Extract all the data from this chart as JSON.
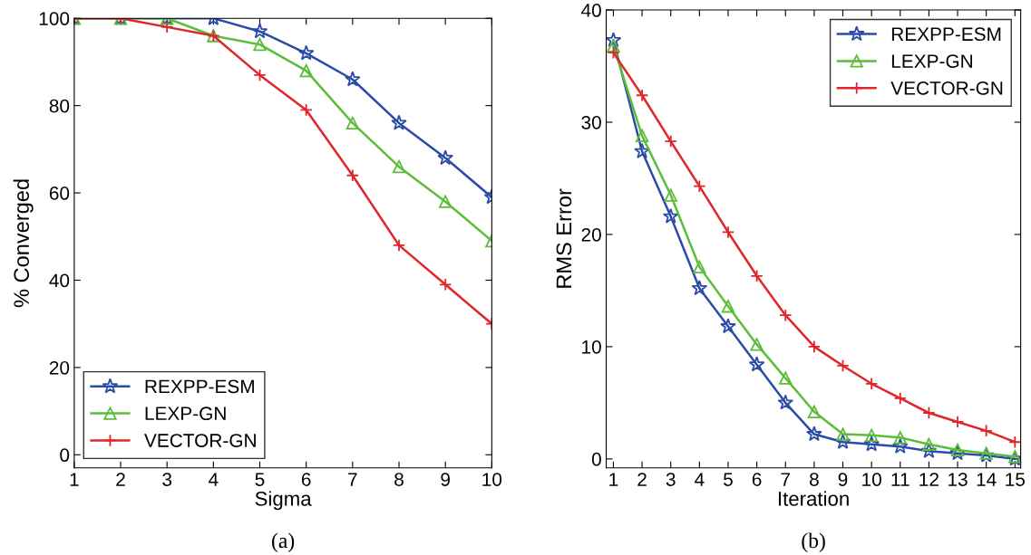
{
  "chart_data": [
    {
      "type": "line",
      "xlabel": "Sigma",
      "ylabel": "% Converged",
      "annotations": [
        "(a)"
      ],
      "x": [
        1,
        2,
        3,
        4,
        5,
        6,
        7,
        8,
        9,
        10
      ],
      "xlim": [
        1,
        10
      ],
      "xticks": [
        1,
        2,
        3,
        4,
        5,
        6,
        7,
        8,
        9,
        10
      ],
      "ylim": [
        -3,
        100
      ],
      "yticks": [
        0,
        20,
        40,
        60,
        80,
        100
      ],
      "legend": "bottom left",
      "grid": false,
      "series": [
        {
          "name": "REXPP-ESM",
          "color": "#2b4ba8",
          "marker": "star",
          "values": [
            100,
            100,
            100,
            100,
            97,
            92,
            86,
            76,
            68,
            59
          ]
        },
        {
          "name": "LEXP-GN",
          "color": "#5cbd3a",
          "marker": "triangle",
          "values": [
            100,
            100,
            100,
            96,
            94,
            88,
            76,
            66,
            58,
            49
          ]
        },
        {
          "name": "VECTOR-GN",
          "color": "#e0262a",
          "marker": "cross",
          "values": [
            100,
            100,
            98,
            96,
            87,
            79,
            64,
            48,
            39,
            30
          ]
        }
      ]
    },
    {
      "type": "line",
      "xlabel": "Iteration",
      "ylabel": "RMS Error",
      "annotations": [
        "(b)"
      ],
      "x": [
        1,
        2,
        3,
        4,
        5,
        6,
        7,
        8,
        9,
        10,
        11,
        12,
        13,
        14,
        15
      ],
      "xlim": [
        0.75,
        15.2
      ],
      "xticks": [
        1,
        2,
        3,
        4,
        5,
        6,
        7,
        8,
        9,
        10,
        11,
        12,
        13,
        14,
        15
      ],
      "ylim": [
        -0.8,
        40
      ],
      "yticks": [
        0,
        10,
        20,
        30,
        40
      ],
      "legend": "top right",
      "grid": false,
      "series": [
        {
          "name": "REXPP-ESM",
          "color": "#2b4ba8",
          "marker": "star",
          "values": [
            37.3,
            27.4,
            21.6,
            15.2,
            11.8,
            8.4,
            5.0,
            2.2,
            1.5,
            1.3,
            1.1,
            0.7,
            0.5,
            0.3,
            0
          ]
        },
        {
          "name": "LEXP-GN",
          "color": "#5cbd3a",
          "marker": "triangle",
          "values": [
            36.8,
            28.8,
            23.5,
            17.1,
            13.6,
            10.2,
            7.2,
            4.2,
            2.2,
            2.1,
            1.9,
            1.3,
            0.8,
            0.5,
            0.2
          ]
        },
        {
          "name": "VECTOR-GN",
          "color": "#e0262a",
          "marker": "cross",
          "values": [
            36.2,
            32.4,
            28.3,
            24.3,
            20.2,
            16.3,
            12.8,
            10.0,
            8.3,
            6.7,
            5.4,
            4.1,
            3.3,
            2.5,
            1.5
          ]
        }
      ]
    }
  ]
}
